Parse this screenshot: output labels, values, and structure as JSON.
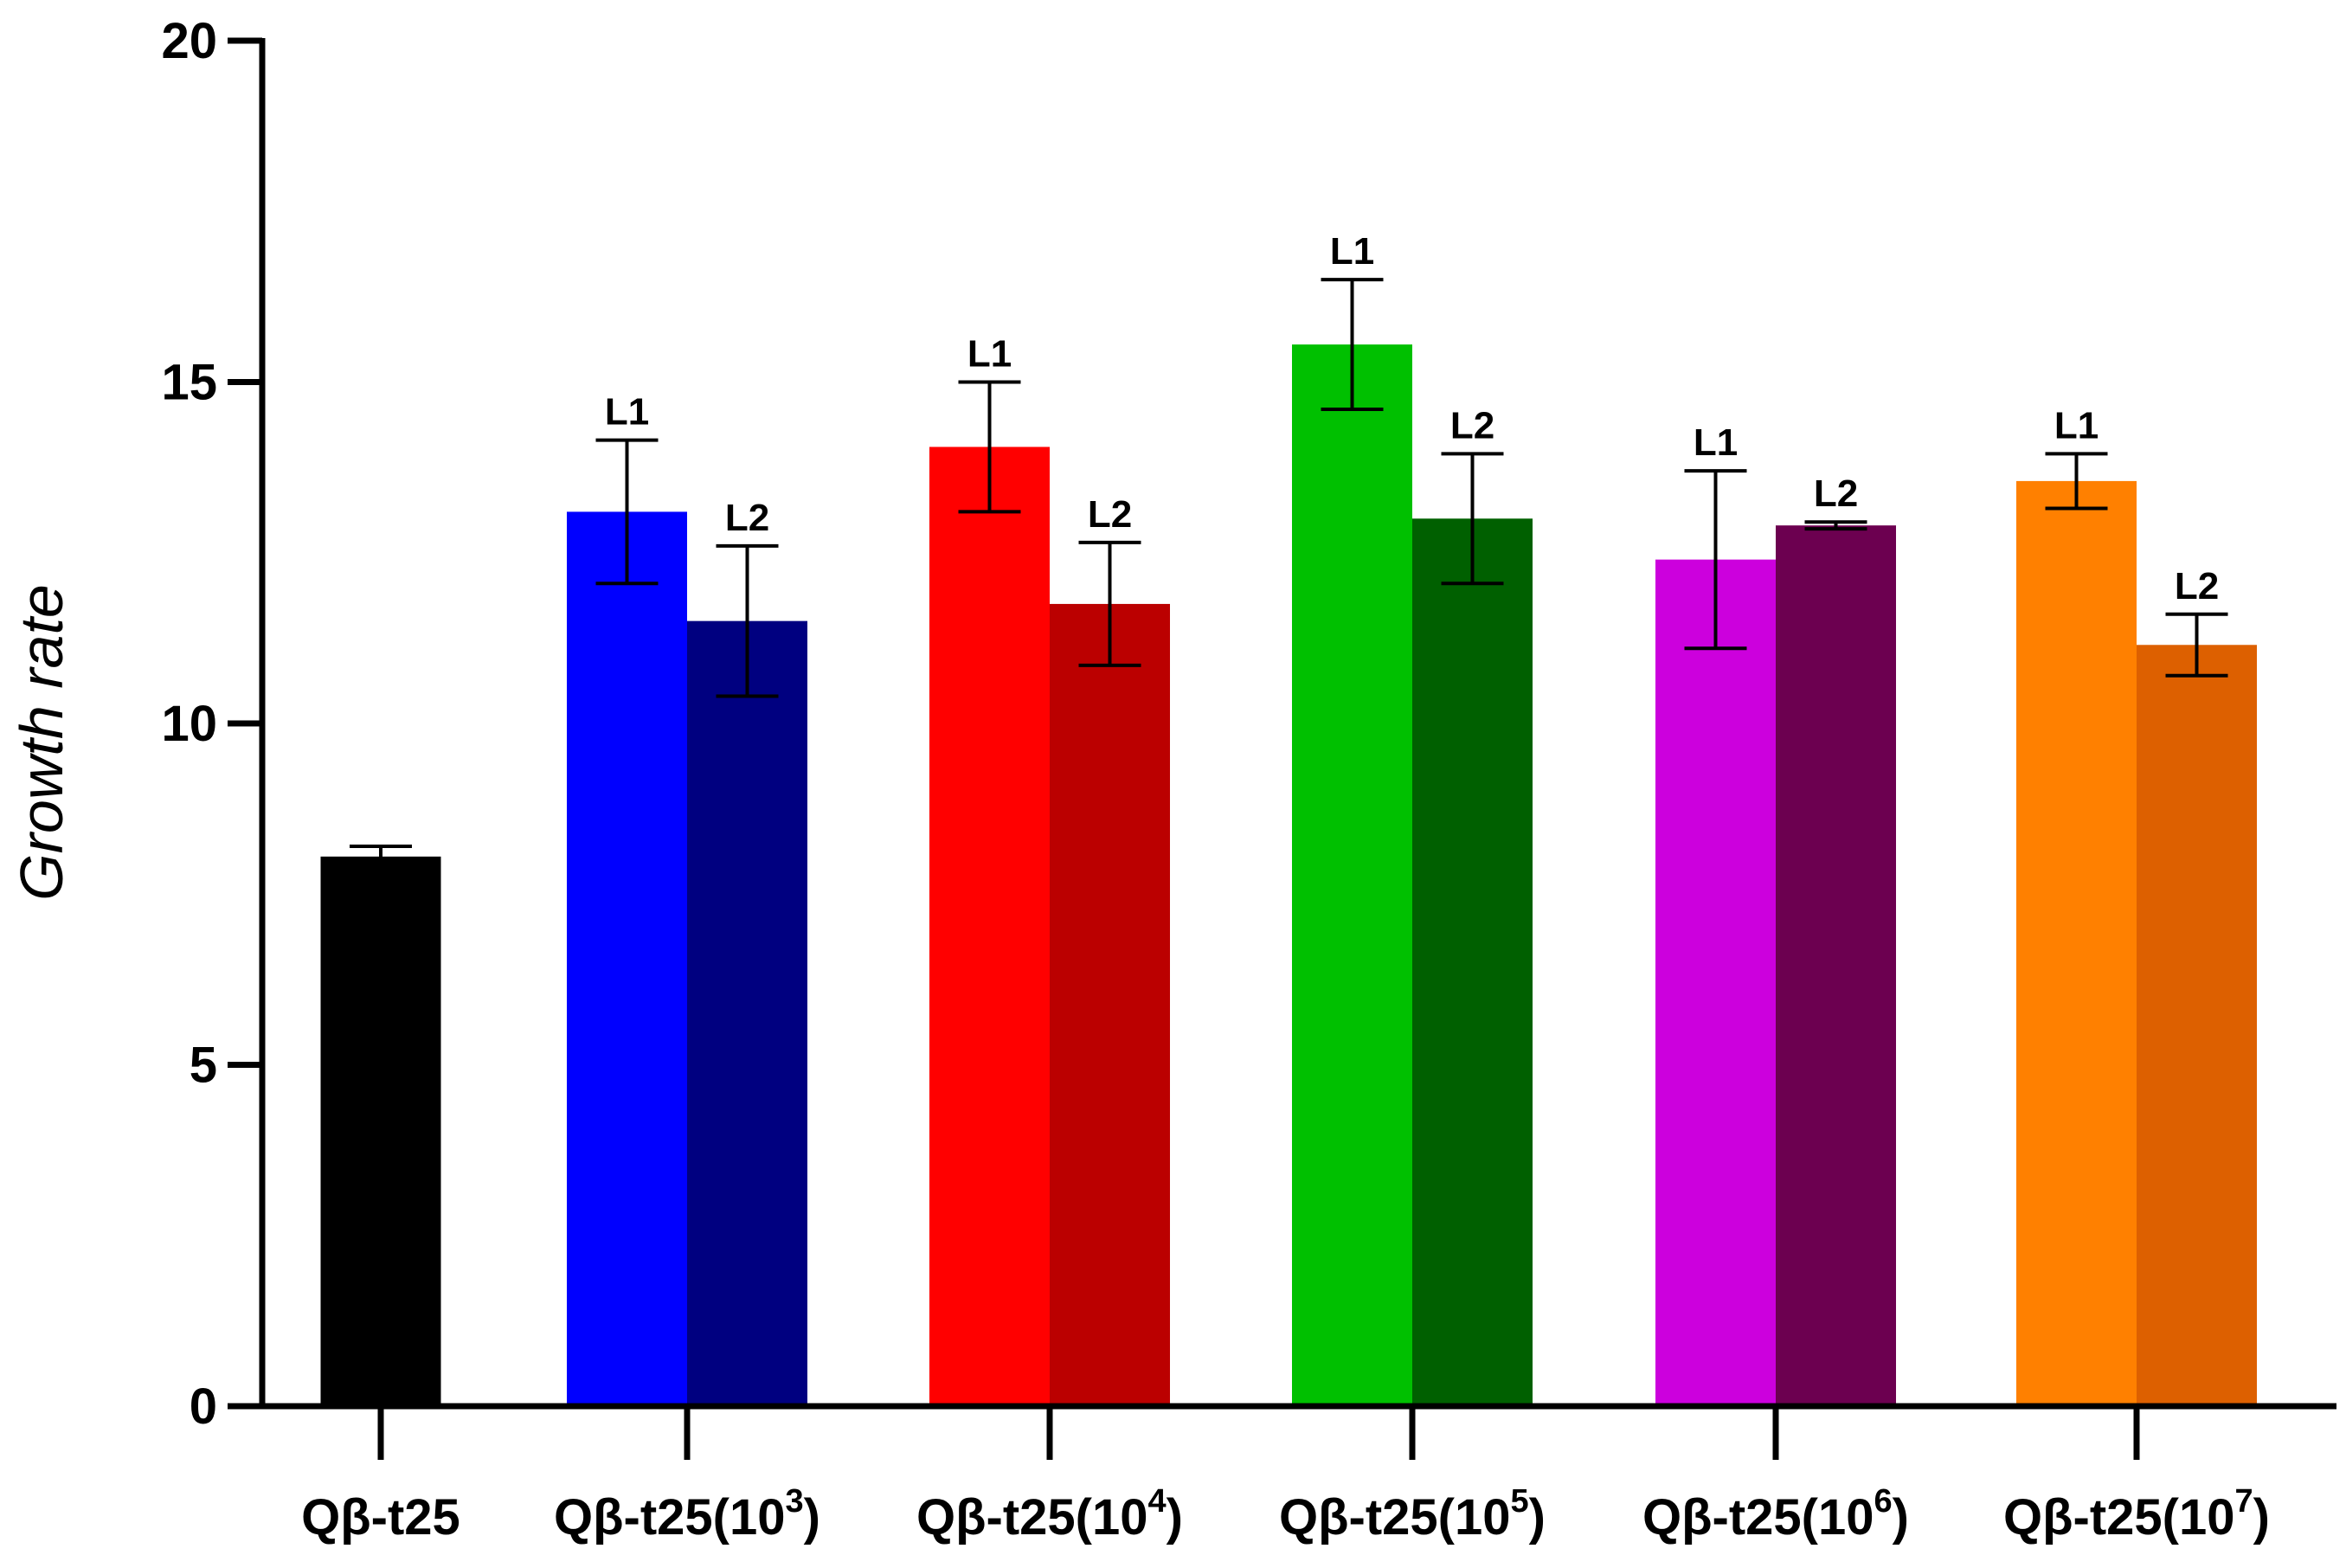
{
  "chart_data": {
    "type": "bar",
    "title": "",
    "xlabel": "",
    "ylabel": "Growth rate",
    "ylim": [
      0,
      20
    ],
    "yticks": [
      "0",
      "5",
      "10",
      "15",
      "20"
    ],
    "grid": false,
    "legend": "none",
    "groups": [
      {
        "label": "Qβ-t25",
        "label_sup": "",
        "bars": [
          {
            "tag": "",
            "value": 8.05,
            "error": 0.15,
            "color": "#000000"
          }
        ]
      },
      {
        "label": "Qβ-t25(10",
        "label_sup": "3",
        "label_end": ")",
        "bars": [
          {
            "tag": "L1",
            "value": 13.1,
            "error": 1.05,
            "color": "#0000FF"
          },
          {
            "tag": "L2",
            "value": 11.5,
            "error": 1.1,
            "color": "#000080"
          }
        ]
      },
      {
        "label": "Qβ-t25(10",
        "label_sup": "4",
        "label_end": ")",
        "bars": [
          {
            "tag": "L1",
            "value": 14.05,
            "error": 0.95,
            "color": "#FF0000"
          },
          {
            "tag": "L2",
            "value": 11.75,
            "error": 0.9,
            "color": "#BB0000"
          }
        ]
      },
      {
        "label": "Qβ-t25(10",
        "label_sup": "5",
        "label_end": ")",
        "bars": [
          {
            "tag": "L1",
            "value": 15.55,
            "error": 0.95,
            "color": "#00C000"
          },
          {
            "tag": "L2",
            "value": 13.0,
            "error": 0.95,
            "color": "#006000"
          }
        ]
      },
      {
        "label": "Qβ-t25(10",
        "label_sup": "6",
        "label_end": ")",
        "bars": [
          {
            "tag": "L1",
            "value": 12.4,
            "error": 1.3,
            "color": "#CC00DD"
          },
          {
            "tag": "L2",
            "value": 12.9,
            "error": 0.05,
            "color": "#6C0050"
          }
        ]
      },
      {
        "label": "Qβ-t25(10",
        "label_sup": "7",
        "label_end": ")",
        "bars": [
          {
            "tag": "L1",
            "value": 13.55,
            "error": 0.4,
            "color": "#FF8000"
          },
          {
            "tag": "L2",
            "value": 11.15,
            "error": 0.45,
            "color": "#DD6000"
          }
        ]
      }
    ]
  }
}
